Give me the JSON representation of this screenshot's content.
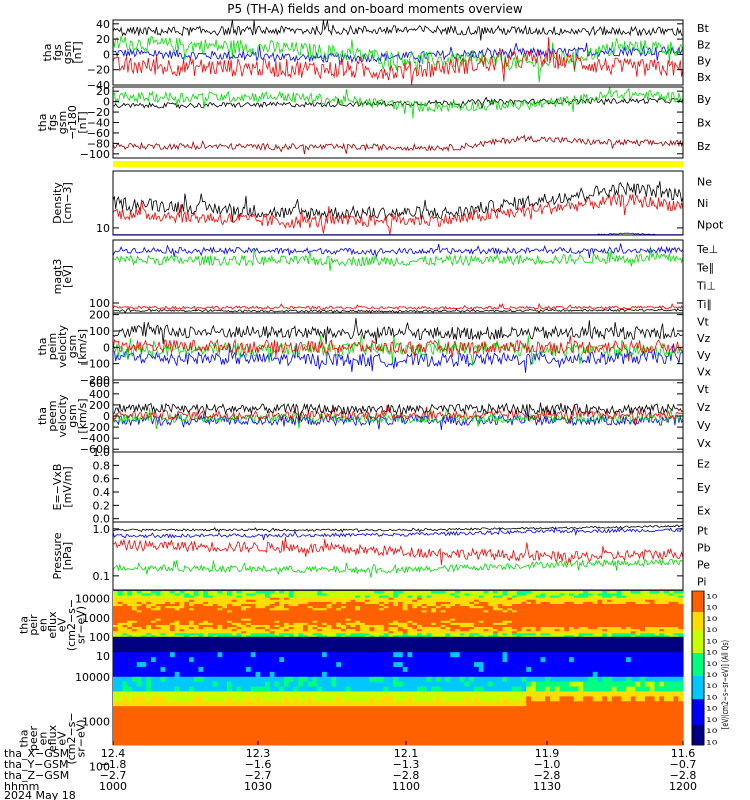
{
  "title": "P5 (TH-A) fields and on-board moments overview",
  "colors": {
    "black": "#000000",
    "red": "#ff0000",
    "green": "#00dd00",
    "blue": "#0000ff",
    "darkred": "#a00000",
    "yellow": "#ffff00"
  },
  "panels": [
    {
      "id": "fgs-gsm",
      "ylabel": [
        "tha",
        "fgs",
        "gsm",
        "[nT]"
      ],
      "ylim": [
        -40,
        45
      ],
      "ticks": [
        "40",
        "20",
        "0",
        "−20",
        "−40"
      ],
      "tickvals": [
        40,
        20,
        0,
        -20,
        -40
      ],
      "log": false,
      "legend": [
        {
          "text": "Bt",
          "color": "black"
        },
        {
          "text": "Bz",
          "color": "red"
        },
        {
          "text": "By",
          "color": "green"
        },
        {
          "text": "Bx",
          "color": "blue"
        }
      ],
      "series": [
        {
          "color": "blue",
          "base": -2,
          "amp": 6,
          "trend": [
            [
              0,
              2
            ],
            [
              0.4,
              -5
            ],
            [
              0.7,
              2
            ],
            [
              1,
              5
            ]
          ]
        },
        {
          "color": "green",
          "base": 12,
          "amp": 10,
          "trend": [
            [
              0,
              15
            ],
            [
              0.3,
              8
            ],
            [
              0.5,
              -5
            ],
            [
              0.75,
              -12
            ],
            [
              0.9,
              10
            ],
            [
              1,
              8
            ]
          ]
        },
        {
          "color": "red",
          "base": -18,
          "amp": 12,
          "trend": [
            [
              0,
              -15
            ],
            [
              0.3,
              -18
            ],
            [
              0.5,
              -22
            ],
            [
              0.75,
              -5
            ],
            [
              0.9,
              -18
            ],
            [
              1,
              -18
            ]
          ]
        },
        {
          "color": "black",
          "base": 32,
          "amp": 6,
          "trend": [
            [
              0,
              30
            ],
            [
              0.5,
              32
            ],
            [
              1,
              30
            ]
          ]
        }
      ]
    },
    {
      "id": "fgs-gsm-r180",
      "ylabel": [
        "tha",
        "fgs",
        "gsm",
        "−r180",
        "[nT]"
      ],
      "ylim": [
        -108,
        28
      ],
      "ticks": [
        "20",
        "0",
        "−20",
        "−40",
        "−60",
        "−80",
        "−100"
      ],
      "tickvals": [
        20,
        0,
        -20,
        -40,
        -60,
        -80,
        -100
      ],
      "log": false,
      "legend": [
        {
          "text": "By",
          "color": "green"
        },
        {
          "text": "Bx",
          "color": "black"
        },
        {
          "text": "Bz",
          "color": "darkred"
        }
      ],
      "series": [
        {
          "color": "black",
          "base": -5,
          "amp": 5,
          "trend": [
            [
              0,
              -8
            ],
            [
              0.4,
              -5
            ],
            [
              0.7,
              0
            ],
            [
              1,
              2
            ]
          ]
        },
        {
          "color": "green",
          "base": 5,
          "amp": 10,
          "trend": [
            [
              0,
              8
            ],
            [
              0.3,
              10
            ],
            [
              0.55,
              -10
            ],
            [
              0.75,
              -5
            ],
            [
              0.9,
              15
            ],
            [
              1,
              8
            ]
          ]
        },
        {
          "color": "darkred",
          "base": -85,
          "amp": 6,
          "trend": [
            [
              0,
              -85
            ],
            [
              0.6,
              -88
            ],
            [
              0.72,
              -70
            ],
            [
              0.85,
              -78
            ],
            [
              1,
              -80
            ]
          ]
        }
      ]
    },
    {
      "id": "density",
      "ylabel": [
        "Density",
        "[cm−3]"
      ],
      "ylim": [
        8,
        60
      ],
      "ticks": [
        "10"
      ],
      "tickvals": [
        10
      ],
      "log": true,
      "legend": [
        {
          "text": "Ne",
          "color": "red"
        },
        {
          "text": "Ni",
          "color": "black"
        },
        {
          "text": "Npot",
          "color": "blue"
        }
      ],
      "series": [
        {
          "color": "black",
          "base": 22,
          "amp": 6,
          "trend": [
            [
              0,
              22
            ],
            [
              0.3,
              16
            ],
            [
              0.6,
              16
            ],
            [
              0.75,
              24
            ],
            [
              0.9,
              35
            ],
            [
              1,
              28
            ]
          ]
        },
        {
          "color": "red",
          "base": 15,
          "amp": 4,
          "trend": [
            [
              0,
              16
            ],
            [
              0.3,
              12
            ],
            [
              0.6,
              13
            ],
            [
              0.75,
              18
            ],
            [
              0.9,
              24
            ],
            [
              1,
              20
            ]
          ]
        },
        {
          "color": "blue",
          "base": 7.2,
          "amp": 0.15,
          "trend": [
            [
              0,
              7.4
            ],
            [
              0.4,
              7.2
            ],
            [
              0.8,
              7.6
            ],
            [
              0.9,
              8.5
            ],
            [
              1,
              7.6
            ]
          ]
        }
      ]
    },
    {
      "id": "temperature",
      "ylabel": [
        "magt3",
        "[eV]"
      ],
      "ylim": [
        60,
        2500
      ],
      "ticks": [
        "100"
      ],
      "tickvals": [
        100
      ],
      "log": true,
      "legend": [
        {
          "text": "Te⊥",
          "color": "red"
        },
        {
          "text": "Te∥",
          "color": "black"
        },
        {
          "text": "Ti⊥",
          "color": "darkred"
        },
        {
          "text": "Ti∥",
          "color": "green"
        }
      ],
      "series": [
        {
          "color": "blue",
          "base": 1500,
          "amp": 300,
          "trend": [
            [
              0,
              1500
            ],
            [
              0.5,
              1400
            ],
            [
              1,
              1500
            ]
          ]
        },
        {
          "color": "green",
          "base": 900,
          "amp": 300,
          "trend": [
            [
              0,
              900
            ],
            [
              0.5,
              850
            ],
            [
              1,
              1000
            ]
          ]
        },
        {
          "color": "red",
          "base": 80,
          "amp": 8,
          "trend": [
            [
              0,
              80
            ],
            [
              0.5,
              78
            ],
            [
              1,
              80
            ]
          ]
        },
        {
          "color": "black",
          "base": 68,
          "amp": 5,
          "trend": [
            [
              0,
              68
            ],
            [
              0.5,
              66
            ],
            [
              1,
              70
            ]
          ]
        }
      ]
    },
    {
      "id": "peim-velocity",
      "ylabel": [
        "tha",
        "peim",
        "velocity",
        "gsm",
        "[km/s]"
      ],
      "ylim": [
        -200,
        210
      ],
      "ticks": [
        "200",
        "100",
        "0",
        "−100",
        "−200"
      ],
      "tickvals": [
        200,
        100,
        0,
        -100,
        -200
      ],
      "log": false,
      "legend": [
        {
          "text": "Vt",
          "color": "black"
        },
        {
          "text": "Vz",
          "color": "red"
        },
        {
          "text": "Vy",
          "color": "green"
        },
        {
          "text": "Vx",
          "color": "blue"
        }
      ],
      "series": [
        {
          "color": "blue",
          "base": -70,
          "amp": 40,
          "trend": [
            [
              0,
              -60
            ],
            [
              0.5,
              -80
            ],
            [
              1,
              -60
            ]
          ]
        },
        {
          "color": "green",
          "base": -20,
          "amp": 40,
          "trend": [
            [
              0,
              -20
            ],
            [
              0.5,
              -10
            ],
            [
              1,
              -20
            ]
          ]
        },
        {
          "color": "red",
          "base": 10,
          "amp": 40,
          "trend": [
            [
              0,
              10
            ],
            [
              0.5,
              0
            ],
            [
              1,
              5
            ]
          ]
        },
        {
          "color": "black",
          "base": 90,
          "amp": 40,
          "trend": [
            [
              0,
              100
            ],
            [
              0.5,
              85
            ],
            [
              1,
              90
            ]
          ]
        }
      ]
    },
    {
      "id": "peem-velocity",
      "ylabel": [
        "tha",
        "peem",
        "velocity",
        "gsm",
        "[km/s]"
      ],
      "ylim": [
        -650,
        650
      ],
      "ticks": [
        "600",
        "400",
        "200",
        "0",
        "−200",
        "−400",
        "−600"
      ],
      "tickvals": [
        600,
        400,
        200,
        0,
        -200,
        -400,
        -600
      ],
      "log": false,
      "legend": [
        {
          "text": "Vt",
          "color": "black"
        },
        {
          "text": "Vz",
          "color": "red"
        },
        {
          "text": "Vy",
          "color": "green"
        },
        {
          "text": "Vx",
          "color": "blue"
        }
      ],
      "series": [
        {
          "color": "blue",
          "base": -80,
          "amp": 90,
          "trend": [
            [
              0,
              -80
            ],
            [
              1,
              -80
            ]
          ]
        },
        {
          "color": "green",
          "base": -40,
          "amp": 80,
          "trend": [
            [
              0,
              -40
            ],
            [
              1,
              -40
            ]
          ]
        },
        {
          "color": "red",
          "base": 20,
          "amp": 80,
          "trend": [
            [
              0,
              20
            ],
            [
              1,
              20
            ]
          ]
        },
        {
          "color": "black",
          "base": 130,
          "amp": 90,
          "trend": [
            [
              0,
              140
            ],
            [
              0.5,
              120
            ],
            [
              1,
              130
            ]
          ]
        }
      ]
    },
    {
      "id": "e-field",
      "ylabel": [
        "E=−VxB",
        "[mV/m]"
      ],
      "ylim": [
        -0.05,
        1.0
      ],
      "ticks": [
        "1.0",
        "0.8",
        "0.6",
        "0.4",
        "0.2",
        "0.0"
      ],
      "tickvals": [
        1.0,
        0.8,
        0.6,
        0.4,
        0.2,
        0.0
      ],
      "log": false,
      "legend": [
        {
          "text": "Ez",
          "color": "red"
        },
        {
          "text": "Ey",
          "color": "green"
        },
        {
          "text": "Ex",
          "color": "blue"
        }
      ],
      "series": []
    },
    {
      "id": "pressure",
      "ylabel": [
        "Pressure",
        "[nPa]"
      ],
      "ylim": [
        0.05,
        1.4
      ],
      "ticks": [
        "1.0",
        "0.1"
      ],
      "tickvals": [
        1.0,
        0.1
      ],
      "log": true,
      "legend": [
        {
          "text": "Pt",
          "color": "black"
        },
        {
          "text": "Pb",
          "color": "red"
        },
        {
          "text": "Pe",
          "color": "green"
        },
        {
          "text": "Pi",
          "color": "blue"
        }
      ],
      "series": [
        {
          "color": "black",
          "base": 0.95,
          "amp": 0.06,
          "trend": [
            [
              0,
              0.95
            ],
            [
              0.5,
              0.95
            ],
            [
              0.8,
              1.05
            ],
            [
              1,
              1.15
            ]
          ]
        },
        {
          "color": "blue",
          "base": 0.7,
          "amp": 0.08,
          "trend": [
            [
              0,
              0.7
            ],
            [
              0.5,
              0.75
            ],
            [
              0.8,
              0.9
            ],
            [
              1,
              0.95
            ]
          ]
        },
        {
          "color": "red",
          "base": 0.35,
          "amp": 0.12,
          "trend": [
            [
              0,
              0.45
            ],
            [
              0.3,
              0.4
            ],
            [
              0.6,
              0.3
            ],
            [
              0.8,
              0.25
            ],
            [
              1,
              0.3
            ]
          ]
        },
        {
          "color": "green",
          "base": 0.14,
          "amp": 0.03,
          "trend": [
            [
              0,
              0.15
            ],
            [
              0.5,
              0.13
            ],
            [
              0.8,
              0.18
            ],
            [
              1,
              0.2
            ]
          ]
        }
      ]
    }
  ],
  "spectrograms": [
    {
      "id": "peir-en-eflux",
      "ylabel": [
        "tha",
        "peir",
        "en",
        "eflux",
        "eV",
        "(cm2−s−",
        "sr−eV)"
      ],
      "ticks": [
        "10000",
        "1000",
        "100",
        "10"
      ],
      "tickvals": [
        10000,
        1000,
        100,
        10
      ],
      "ylim": [
        7,
        25000
      ]
    },
    {
      "id": "peer-en-eflux",
      "ylabel": [
        "tha",
        "peer",
        "en",
        "eflux",
        "eV",
        "(cm2−s−",
        "sr−eV)"
      ],
      "ticks": [
        "10000",
        "1000",
        "100",
        "10"
      ],
      "tickvals": [
        10000,
        1000,
        100,
        10
      ],
      "ylim": [
        7,
        25000
      ]
    }
  ],
  "colorbar": {
    "ticks": [
      "10",
      "10",
      "10",
      "10",
      "10",
      "10",
      "10",
      "10",
      "10",
      "10",
      "10",
      "10",
      "10",
      "10"
    ],
    "label": "[eV/(cm2−s−sr−eV)] (All Qs)"
  },
  "xaxis": {
    "ticks": [
      "12.4",
      "12.3",
      "12.1",
      "11.9",
      "11.6"
    ],
    "rows": [
      {
        "label": "tha_X−GSM",
        "values": [
          "12.4",
          "12.3",
          "12.1",
          "11.9",
          "11.6"
        ]
      },
      {
        "label": "tha_Y−GSM",
        "values": [
          "−1.8",
          "−1.6",
          "−1.3",
          "−1.0",
          "−0.7"
        ]
      },
      {
        "label": "tha_Z−GSM",
        "values": [
          "−2.7",
          "−2.7",
          "−2.8",
          "−2.8",
          "−2.8"
        ]
      },
      {
        "label": "hhmm",
        "values": [
          "1000",
          "1030",
          "1100",
          "1130",
          "1200"
        ]
      }
    ],
    "date": "2024 May 18"
  }
}
